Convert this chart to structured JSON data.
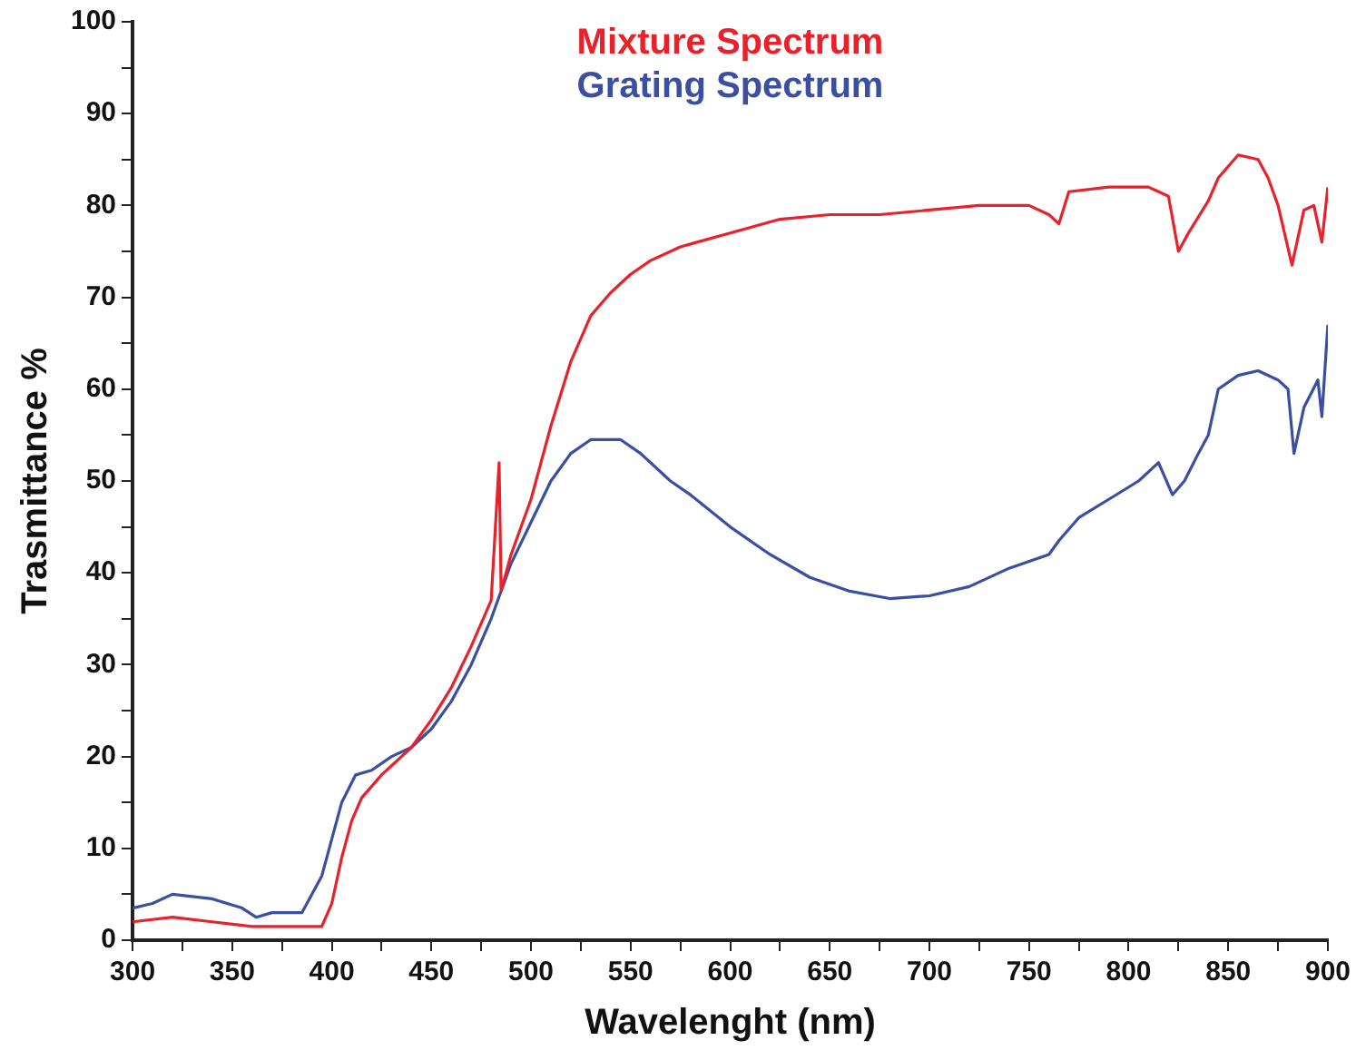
{
  "chart_data": {
    "type": "line",
    "xlabel": "Wavelenght (nm)",
    "ylabel": "Trasmittance %",
    "xlim": [
      300,
      900
    ],
    "ylim": [
      0,
      100
    ],
    "xticks": [
      300,
      {
        "value": 325,
        "label": null
      },
      350,
      {
        "value": 375,
        "label": null
      },
      400,
      {
        "value": 425,
        "label": null
      },
      450,
      {
        "value": 475,
        "label": null
      },
      500,
      {
        "value": 525,
        "label": null
      },
      550,
      {
        "value": 575,
        "label": null
      },
      600,
      {
        "value": 625,
        "label": null
      },
      650,
      {
        "value": 675,
        "label": null
      },
      700,
      {
        "value": 725,
        "label": null
      },
      750,
      {
        "value": 775,
        "label": null
      },
      800,
      {
        "value": 825,
        "label": null
      },
      850,
      {
        "value": 875,
        "label": null
      },
      900
    ],
    "yticks": [
      0,
      {
        "value": 5,
        "label": null
      },
      10,
      {
        "value": 15,
        "label": null
      },
      20,
      {
        "value": 25,
        "label": null
      },
      30,
      {
        "value": 35,
        "label": null
      },
      40,
      {
        "value": 45,
        "label": null
      },
      50,
      {
        "value": 55,
        "label": null
      },
      60,
      {
        "value": 65,
        "label": null
      },
      70,
      {
        "value": 75,
        "label": null
      },
      80,
      {
        "value": 85,
        "label": null
      },
      90,
      {
        "value": 95,
        "label": null
      },
      100
    ],
    "grid": false,
    "legend": "top",
    "marker": "none",
    "line_style": "solid",
    "series": [
      {
        "name": "Mixture Spectrum",
        "color": "#e8212a",
        "x": [
          300,
          320,
          340,
          360,
          380,
          395,
          400,
          405,
          410,
          415,
          425,
          440,
          450,
          460,
          470,
          480,
          484,
          485,
          490,
          500,
          510,
          520,
          530,
          540,
          550,
          560,
          575,
          600,
          625,
          650,
          675,
          700,
          725,
          750,
          760,
          765,
          770,
          790,
          810,
          820,
          825,
          830,
          840,
          845,
          855,
          865,
          870,
          875,
          882,
          888,
          893,
          897,
          900
        ],
        "values": [
          2,
          2.5,
          2,
          1.5,
          1.5,
          1.5,
          4,
          9,
          13,
          15.5,
          18,
          21,
          24,
          27.5,
          32,
          37,
          52,
          38,
          42,
          48,
          56,
          63,
          68,
          70.5,
          72.5,
          74,
          75.5,
          77,
          78.5,
          79,
          79,
          79.5,
          80,
          80,
          79,
          78,
          81.5,
          82,
          82,
          81,
          75,
          77,
          80.5,
          83,
          85.5,
          85,
          83,
          80,
          73.5,
          79.5,
          80,
          76,
          82
        ]
      },
      {
        "name": "Grating Spectrum",
        "color": "#3a4fa0",
        "x": [
          300,
          310,
          320,
          340,
          355,
          362,
          370,
          385,
          395,
          400,
          405,
          412,
          420,
          430,
          440,
          450,
          460,
          470,
          480,
          490,
          500,
          510,
          520,
          530,
          545,
          555,
          570,
          580,
          600,
          620,
          640,
          660,
          680,
          700,
          720,
          740,
          760,
          765,
          775,
          790,
          805,
          815,
          822,
          828,
          835,
          840,
          845,
          855,
          865,
          875,
          880,
          883,
          888,
          895,
          897,
          900
        ],
        "values": [
          3.5,
          4,
          5,
          4.5,
          3.5,
          2.5,
          3,
          3,
          7,
          11,
          15,
          18,
          18.5,
          20,
          21,
          23,
          26,
          30,
          35,
          41,
          45.5,
          50,
          53,
          54.5,
          54.5,
          53,
          50,
          48.5,
          45,
          42,
          39.5,
          38,
          37.2,
          37.5,
          38.5,
          40.5,
          42,
          43.5,
          46,
          48,
          50,
          52,
          48.5,
          50,
          53,
          55,
          60,
          61.5,
          62,
          61,
          60,
          53,
          58,
          61,
          57,
          67
        ]
      }
    ]
  }
}
